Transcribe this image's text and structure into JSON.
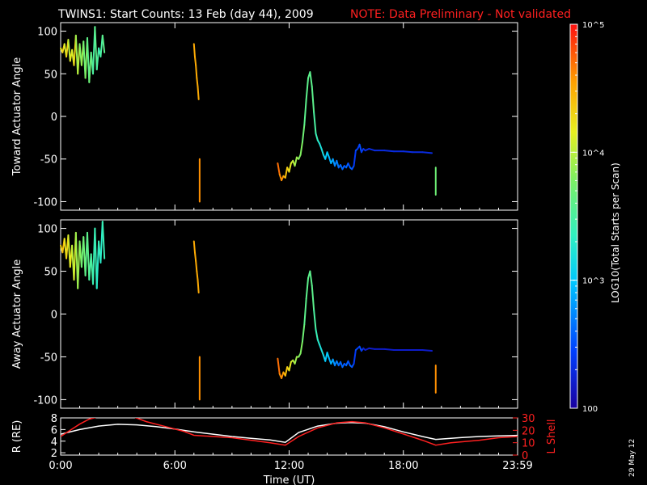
{
  "header": {
    "title": "TWINS1: Start Counts: 13 Feb (day  44), 2009",
    "note": "NOTE: Data Preliminary - Not validated"
  },
  "stamp": "29 May 12",
  "colors": {
    "note": "#ff2020",
    "lshell": "#ff2020",
    "radius": "#ffffff"
  },
  "chart_data": [
    {
      "type": "line",
      "ylabel": "Toward Actuator Angle",
      "ylim": [
        -110,
        110
      ],
      "yticks": [
        "100",
        "50",
        "0",
        "-50",
        "-100"
      ],
      "xlim": [
        0,
        24
      ],
      "colorbar": {
        "label": "LOG10(Total Starts per Scan)",
        "range": [
          100,
          100000
        ],
        "ticks": [
          "10^5",
          "10^4",
          "10^3",
          "100"
        ],
        "scale": "log"
      },
      "series": [
        {
          "x": [
            0.0,
            0.1,
            0.2,
            0.3,
            0.4,
            0.5,
            0.6,
            0.7,
            0.8,
            0.9,
            1.0,
            1.1,
            1.2,
            1.3,
            1.4,
            1.5,
            1.6,
            1.7,
            1.8,
            1.9,
            2.0,
            2.1,
            2.2,
            2.3
          ],
          "y": [
            80,
            75,
            85,
            70,
            90,
            65,
            78,
            60,
            95,
            50,
            85,
            60,
            88,
            45,
            92,
            40,
            75,
            50,
            105,
            55,
            80,
            70,
            95,
            75
          ],
          "log_counts": [
            4.2,
            4.3,
            4.1,
            4.3,
            4.0,
            4.2,
            4.1,
            4.3,
            3.9,
            4.0,
            3.8,
            3.9,
            3.7,
            3.8,
            3.6,
            3.7,
            3.6,
            3.5,
            3.6,
            3.5,
            3.4,
            3.5,
            3.6,
            3.5
          ]
        },
        {
          "x": [
            7.0,
            7.05,
            7.1,
            7.15,
            7.2,
            7.25
          ],
          "y": [
            85,
            70,
            60,
            45,
            35,
            20
          ],
          "log_counts": [
            4.5,
            4.5,
            4.5,
            4.5,
            4.5,
            4.5
          ]
        },
        {
          "x": [
            7.3,
            7.3
          ],
          "y": [
            -50,
            -100
          ],
          "log_counts": [
            4.6,
            4.6
          ]
        },
        {
          "x": [
            11.4,
            11.5,
            11.6,
            11.7,
            11.8,
            11.9,
            12.0,
            12.1,
            12.2,
            12.3,
            12.4,
            12.5,
            12.6,
            12.7,
            12.8,
            12.9,
            13.0,
            13.1,
            13.2,
            13.3,
            13.4,
            13.5,
            13.6,
            13.7,
            13.8,
            13.9,
            14.0,
            14.1,
            14.2,
            14.3,
            14.4,
            14.5,
            14.6,
            14.7,
            14.8,
            14.9,
            15.0,
            15.1,
            15.2,
            15.3,
            15.4,
            15.5,
            15.6,
            15.7,
            15.8,
            15.9,
            16.0,
            16.2,
            16.5,
            17.0,
            17.5,
            18.0,
            18.5,
            19.0,
            19.5
          ],
          "y": [
            -55,
            -68,
            -75,
            -70,
            -72,
            -60,
            -65,
            -55,
            -52,
            -58,
            -48,
            -50,
            -45,
            -30,
            -10,
            20,
            45,
            52,
            35,
            5,
            -20,
            -28,
            -32,
            -38,
            -45,
            -50,
            -42,
            -48,
            -55,
            -50,
            -58,
            -52,
            -60,
            -57,
            -62,
            -58,
            -60,
            -55,
            -60,
            -62,
            -58,
            -40,
            -38,
            -33,
            -42,
            -38,
            -40,
            -38,
            -40,
            -40,
            -41,
            -41,
            -42,
            -42,
            -43
          ],
          "log_counts": [
            4.7,
            4.6,
            4.6,
            4.5,
            4.4,
            4.3,
            4.2,
            4.1,
            4.0,
            3.9,
            3.9,
            3.8,
            3.8,
            3.7,
            3.6,
            3.6,
            3.6,
            3.6,
            3.6,
            3.5,
            3.4,
            3.3,
            3.2,
            3.2,
            3.1,
            3.0,
            3.0,
            2.9,
            2.9,
            2.8,
            2.7,
            2.7,
            2.6,
            2.6,
            2.6,
            2.5,
            2.6,
            2.5,
            2.6,
            2.5,
            2.4,
            2.5,
            2.4,
            2.5,
            2.4,
            2.3,
            2.3,
            2.3,
            2.3,
            2.3,
            2.3,
            2.3,
            2.3,
            2.3,
            2.3
          ]
        },
        {
          "x": [
            19.7,
            19.7
          ],
          "y": [
            -60,
            -92
          ],
          "log_counts": [
            3.7,
            3.7
          ]
        }
      ]
    },
    {
      "type": "line",
      "ylabel": "Away Actuator Angle",
      "ylim": [
        -110,
        110
      ],
      "yticks": [
        "100",
        "50",
        "0",
        "-50",
        "-100"
      ],
      "xlim": [
        0,
        24
      ],
      "series": [
        {
          "x": [
            0.0,
            0.1,
            0.2,
            0.3,
            0.4,
            0.5,
            0.6,
            0.7,
            0.8,
            0.9,
            1.0,
            1.1,
            1.2,
            1.3,
            1.4,
            1.5,
            1.6,
            1.7,
            1.8,
            1.9,
            2.0,
            2.1,
            2.2,
            2.3
          ],
          "y": [
            80,
            72,
            88,
            65,
            92,
            55,
            80,
            40,
            95,
            30,
            85,
            55,
            90,
            45,
            95,
            40,
            70,
            35,
            100,
            30,
            85,
            60,
            108,
            65
          ],
          "log_counts": [
            4.3,
            4.4,
            4.2,
            4.3,
            4.1,
            4.2,
            4.0,
            4.1,
            3.9,
            3.9,
            3.8,
            3.7,
            3.7,
            3.6,
            3.6,
            3.5,
            3.5,
            3.4,
            3.4,
            3.3,
            3.4,
            3.3,
            3.4,
            3.3
          ]
        },
        {
          "x": [
            7.0,
            7.05,
            7.1,
            7.15,
            7.2,
            7.25
          ],
          "y": [
            85,
            72,
            62,
            50,
            40,
            25
          ],
          "log_counts": [
            4.5,
            4.5,
            4.5,
            4.5,
            4.5,
            4.5
          ]
        },
        {
          "x": [
            7.3,
            7.3
          ],
          "y": [
            -50,
            -100
          ],
          "log_counts": [
            4.6,
            4.6
          ]
        },
        {
          "x": [
            11.4,
            11.5,
            11.6,
            11.7,
            11.8,
            11.9,
            12.0,
            12.1,
            12.2,
            12.3,
            12.4,
            12.5,
            12.6,
            12.7,
            12.8,
            12.9,
            13.0,
            13.1,
            13.2,
            13.3,
            13.4,
            13.5,
            13.6,
            13.7,
            13.8,
            13.9,
            14.0,
            14.1,
            14.2,
            14.3,
            14.4,
            14.5,
            14.6,
            14.7,
            14.8,
            14.9,
            15.0,
            15.1,
            15.2,
            15.3,
            15.4,
            15.5,
            15.6,
            15.7,
            15.8,
            15.9,
            16.0,
            16.2,
            16.5,
            17.0,
            17.5,
            18.0,
            18.5,
            19.0,
            19.5
          ],
          "y": [
            -52,
            -70,
            -75,
            -68,
            -72,
            -62,
            -66,
            -56,
            -54,
            -58,
            -50,
            -50,
            -46,
            -32,
            -12,
            18,
            42,
            50,
            33,
            5,
            -18,
            -30,
            -36,
            -42,
            -48,
            -55,
            -45,
            -52,
            -58,
            -53,
            -60,
            -55,
            -60,
            -56,
            -62,
            -58,
            -60,
            -55,
            -60,
            -62,
            -58,
            -42,
            -40,
            -38,
            -43,
            -40,
            -42,
            -40,
            -41,
            -41,
            -42,
            -42,
            -42,
            -42,
            -43
          ],
          "log_counts": [
            4.7,
            4.6,
            4.6,
            4.5,
            4.4,
            4.3,
            4.2,
            4.1,
            4.0,
            3.9,
            3.9,
            3.8,
            3.8,
            3.7,
            3.6,
            3.6,
            3.6,
            3.6,
            3.6,
            3.5,
            3.4,
            3.3,
            3.2,
            3.2,
            3.1,
            3.0,
            3.0,
            2.9,
            2.9,
            2.8,
            2.7,
            2.7,
            2.6,
            2.6,
            2.6,
            2.5,
            2.6,
            2.5,
            2.6,
            2.5,
            2.4,
            2.5,
            2.4,
            2.5,
            2.4,
            2.2,
            2.2,
            2.2,
            2.2,
            2.2,
            2.2,
            2.2,
            2.2,
            2.2,
            2.2
          ]
        },
        {
          "x": [
            19.7,
            19.7
          ],
          "y": [
            -60,
            -92
          ],
          "log_counts": [
            4.6,
            4.6
          ]
        }
      ]
    },
    {
      "type": "line",
      "xlabel": "Time (UT)",
      "xlim": [
        0,
        24
      ],
      "xticks": [
        {
          "x": 0,
          "label": "0:00"
        },
        {
          "x": 6,
          "label": "6:00"
        },
        {
          "x": 12,
          "label": "12:00"
        },
        {
          "x": 18,
          "label": "18:00"
        },
        {
          "x": 24,
          "label": "23:59"
        }
      ],
      "y_left": {
        "label": "R (RE)",
        "ylim": [
          1.6,
          8
        ],
        "yticks": [
          "8",
          "6",
          "4",
          "2"
        ]
      },
      "y_right": {
        "label": "L Shell",
        "ylim": [
          0,
          30
        ],
        "yticks": [
          "30",
          "20",
          "10",
          "0"
        ]
      },
      "series": [
        {
          "name": "R",
          "axis": "left",
          "x": [
            0,
            1.0,
            2.0,
            3.0,
            4.0,
            5.0,
            6.0,
            7.0,
            8.0,
            9.0,
            10.0,
            11.0,
            11.8,
            12.5,
            13.5,
            14.5,
            15.2,
            16.0,
            17.0,
            18.0,
            19.0,
            19.7,
            21.0,
            22.0,
            23.0,
            24.0
          ],
          "y": [
            5.2,
            6.0,
            6.6,
            6.9,
            6.8,
            6.5,
            6.1,
            5.6,
            5.2,
            4.8,
            4.5,
            4.2,
            3.8,
            5.5,
            6.6,
            7.1,
            7.2,
            7.1,
            6.5,
            5.6,
            4.8,
            4.3,
            4.6,
            4.8,
            4.9,
            5.0
          ]
        },
        {
          "name": "L Shell",
          "axis": "right",
          "x": [
            0,
            0.5,
            1.0,
            1.5,
            2.0,
            3.8,
            4.5,
            5.5,
            6.5,
            7.0,
            8.0,
            9.0,
            10.0,
            11.0,
            11.8,
            12.5,
            13.5,
            14.5,
            15.3,
            16.0,
            17.0,
            18.0,
            19.0,
            19.7,
            20.5,
            22.0,
            23.0,
            24.0
          ],
          "y": [
            15,
            20,
            25,
            29,
            31,
            31,
            27,
            23,
            19,
            16,
            15,
            14,
            12,
            10,
            8,
            15,
            22,
            26,
            27,
            26,
            22,
            17,
            12,
            8,
            10,
            12,
            14,
            15
          ]
        }
      ]
    }
  ]
}
